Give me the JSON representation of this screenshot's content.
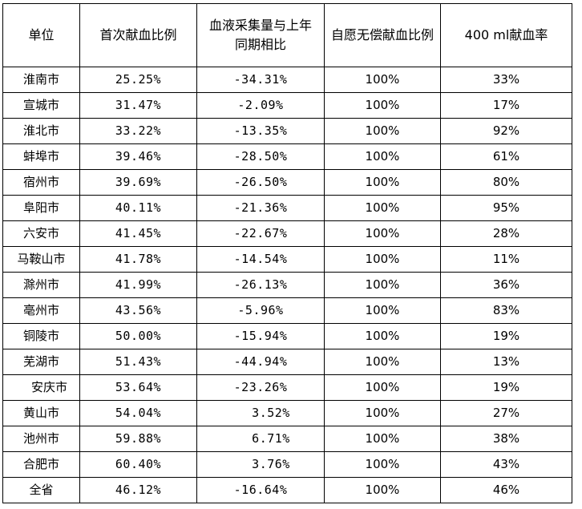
{
  "table": {
    "headers": {
      "unit": "单位",
      "first_donation_ratio": "首次献血比例",
      "collection_change": "血液采集量与上年同期相比",
      "voluntary_ratio": "自愿无偿献血比例",
      "rate_400ml": "400 ml献血率"
    },
    "rows": [
      {
        "unit": "淮南市",
        "first_donation_ratio": "25.25%",
        "collection_change": "-34.31%",
        "voluntary_ratio": "100%",
        "rate_400ml": "33%"
      },
      {
        "unit": "宣城市",
        "first_donation_ratio": "31.47%",
        "collection_change": "-2.09%",
        "voluntary_ratio": "100%",
        "rate_400ml": "17%"
      },
      {
        "unit": "淮北市",
        "first_donation_ratio": "33.22%",
        "collection_change": "-13.35%",
        "voluntary_ratio": "100%",
        "rate_400ml": "92%"
      },
      {
        "unit": "蚌埠市",
        "first_donation_ratio": "39.46%",
        "collection_change": "-28.50%",
        "voluntary_ratio": "100%",
        "rate_400ml": "61%"
      },
      {
        "unit": "宿州市",
        "first_donation_ratio": "39.69%",
        "collection_change": "-26.50%",
        "voluntary_ratio": "100%",
        "rate_400ml": "80%"
      },
      {
        "unit": "阜阳市",
        "first_donation_ratio": "40.11%",
        "collection_change": "-21.36%",
        "voluntary_ratio": "100%",
        "rate_400ml": "95%"
      },
      {
        "unit": "六安市",
        "first_donation_ratio": "41.45%",
        "collection_change": "-22.67%",
        "voluntary_ratio": "100%",
        "rate_400ml": "28%"
      },
      {
        "unit": "马鞍山市",
        "first_donation_ratio": "41.78%",
        "collection_change": "-14.54%",
        "voluntary_ratio": "100%",
        "rate_400ml": "11%"
      },
      {
        "unit": "滁州市",
        "first_donation_ratio": "41.99%",
        "collection_change": "-26.13%",
        "voluntary_ratio": "100%",
        "rate_400ml": "36%"
      },
      {
        "unit": "亳州市",
        "first_donation_ratio": "43.56%",
        "collection_change": "-5.96%",
        "voluntary_ratio": "100%",
        "rate_400ml": "83%"
      },
      {
        "unit": "铜陵市",
        "first_donation_ratio": "50.00%",
        "collection_change": "-15.94%",
        "voluntary_ratio": "100%",
        "rate_400ml": "19%"
      },
      {
        "unit": "芜湖市",
        "first_donation_ratio": "51.43%",
        "collection_change": "-44.94%",
        "voluntary_ratio": "100%",
        "rate_400ml": "13%"
      },
      {
        "unit": "安庆市",
        "first_donation_ratio": "53.64%",
        "collection_change": "-23.26%",
        "voluntary_ratio": "100%",
        "rate_400ml": "19%"
      },
      {
        "unit": "黄山市",
        "first_donation_ratio": "54.04%",
        "collection_change": "3.52%",
        "voluntary_ratio": "100%",
        "rate_400ml": "27%"
      },
      {
        "unit": "池州市",
        "first_donation_ratio": "59.88%",
        "collection_change": "6.71%",
        "voluntary_ratio": "100%",
        "rate_400ml": "38%"
      },
      {
        "unit": "合肥市",
        "first_donation_ratio": "60.40%",
        "collection_change": "3.76%",
        "voluntary_ratio": "100%",
        "rate_400ml": "43%"
      },
      {
        "unit": "全省",
        "first_donation_ratio": "46.12%",
        "collection_change": "-16.64%",
        "voluntary_ratio": "100%",
        "rate_400ml": "46%"
      }
    ]
  }
}
